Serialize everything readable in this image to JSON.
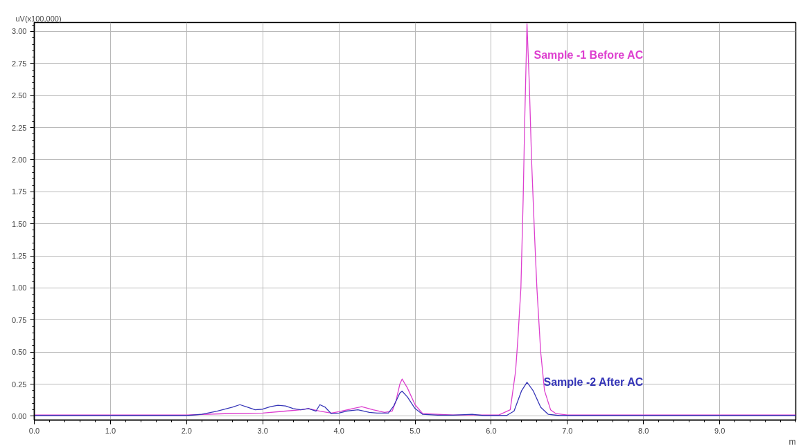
{
  "chart_data": {
    "type": "line",
    "ylabel": "uV(x100,000)",
    "xlabel": "m",
    "xlim": [
      0,
      10
    ],
    "ylim": [
      -0.03,
      3.07
    ],
    "xticks": [
      {
        "value": 0,
        "label": "0.0"
      },
      {
        "value": 1,
        "label": "1.0"
      },
      {
        "value": 2,
        "label": "2.0"
      },
      {
        "value": 3,
        "label": "3.0"
      },
      {
        "value": 4,
        "label": "4.0"
      },
      {
        "value": 5,
        "label": "5.0"
      },
      {
        "value": 6,
        "label": "6.0"
      },
      {
        "value": 7,
        "label": "7.0"
      },
      {
        "value": 8,
        "label": "8.0"
      },
      {
        "value": 9,
        "label": "9.0"
      }
    ],
    "yticks": [
      {
        "value": 0,
        "label": "0.00"
      },
      0.25,
      {
        "value": 0.5,
        "label": "0.50"
      },
      0.75,
      {
        "value": 1,
        "label": "1.00"
      },
      1.25,
      {
        "value": 1.5,
        "label": "1.50"
      },
      1.75,
      {
        "value": 2,
        "label": "2.00"
      },
      2.25,
      {
        "value": 2.5,
        "label": "2.50"
      },
      2.75,
      {
        "value": 3,
        "label": "3.00"
      }
    ],
    "grid": true,
    "marker": "none",
    "line_style": "solid",
    "series": [
      {
        "name": "Sample -1 Before AC",
        "color": "#dd3fcf",
        "x": [
          0,
          1,
          2,
          2.5,
          3,
          3.3,
          3.5,
          3.6,
          3.75,
          3.9,
          4.0,
          4.3,
          4.45,
          4.6,
          4.7,
          4.75,
          4.8,
          4.83,
          4.9,
          5.0,
          5.1,
          5.5,
          6.1,
          6.25,
          6.32,
          6.35,
          6.39,
          6.42,
          6.44,
          6.47,
          6.5,
          6.53,
          6.57,
          6.6,
          6.65,
          6.7,
          6.78,
          6.85,
          7.0,
          8,
          9,
          10
        ],
        "values": [
          0.01,
          0.01,
          0.01,
          0.02,
          0.025,
          0.04,
          0.05,
          0.06,
          0.04,
          0.025,
          0.035,
          0.075,
          0.05,
          0.03,
          0.04,
          0.12,
          0.25,
          0.29,
          0.22,
          0.09,
          0.02,
          0.01,
          0.01,
          0.05,
          0.35,
          0.6,
          1.0,
          1.7,
          2.3,
          3.06,
          2.6,
          2.0,
          1.4,
          1.0,
          0.5,
          0.2,
          0.05,
          0.02,
          0.01,
          0.01,
          0.01,
          0.01
        ]
      },
      {
        "name": "Sample -2 After AC",
        "color": "#3636b8",
        "x": [
          0,
          1,
          2,
          2.2,
          2.4,
          2.6,
          2.7,
          2.8,
          2.9,
          3.0,
          3.1,
          3.2,
          3.3,
          3.4,
          3.5,
          3.6,
          3.7,
          3.75,
          3.82,
          3.9,
          4.0,
          4.1,
          4.25,
          4.4,
          4.5,
          4.65,
          4.72,
          4.8,
          4.83,
          4.9,
          5.0,
          5.1,
          5.3,
          5.5,
          5.75,
          5.9,
          6.2,
          6.3,
          6.4,
          6.47,
          6.55,
          6.65,
          6.75,
          6.9,
          8,
          10
        ],
        "values": [
          0.005,
          0.005,
          0.005,
          0.015,
          0.04,
          0.07,
          0.09,
          0.07,
          0.05,
          0.055,
          0.075,
          0.085,
          0.08,
          0.06,
          0.05,
          0.06,
          0.04,
          0.09,
          0.07,
          0.02,
          0.025,
          0.04,
          0.05,
          0.03,
          0.025,
          0.025,
          0.08,
          0.18,
          0.195,
          0.15,
          0.06,
          0.015,
          0.008,
          0.008,
          0.015,
          0.005,
          0.005,
          0.04,
          0.2,
          0.265,
          0.2,
          0.07,
          0.015,
          0.005,
          0.005,
          0.005
        ]
      }
    ]
  }
}
